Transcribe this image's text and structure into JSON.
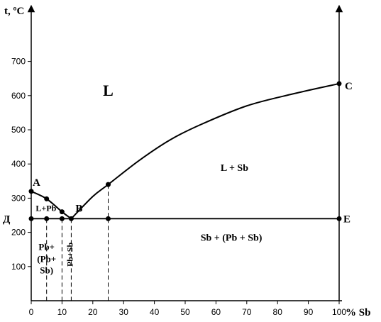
{
  "chart_data": {
    "type": "line",
    "ylabel": "t, ºC",
    "xlabel": "% Sb",
    "xlim": [
      0,
      100
    ],
    "ylim": [
      0,
      760
    ],
    "x_ticks": [
      0,
      10,
      20,
      30,
      40,
      50,
      60,
      70,
      80,
      90,
      100
    ],
    "y_ticks": [
      100,
      200,
      300,
      400,
      500,
      600,
      700
    ],
    "liquidus": {
      "left_branch": [
        [
          0,
          320
        ],
        [
          5,
          298
        ],
        [
          10,
          260
        ],
        [
          13,
          240
        ]
      ],
      "right_branch": [
        [
          13,
          240
        ],
        [
          20,
          305
        ],
        [
          25,
          340
        ],
        [
          35,
          410
        ],
        [
          45,
          470
        ],
        [
          55,
          515
        ],
        [
          70,
          570
        ],
        [
          85,
          605
        ],
        [
          100,
          635
        ]
      ]
    },
    "eutectic_line": {
      "y": 240,
      "x_from": 0,
      "x_to": 100
    },
    "points": [
      {
        "label": "A",
        "x": 0,
        "y": 320
      },
      {
        "label": "",
        "x": 5,
        "y": 298
      },
      {
        "label": "",
        "x": 10,
        "y": 260
      },
      {
        "label": "B",
        "x": 13,
        "y": 240
      },
      {
        "label": "",
        "x": 25,
        "y": 340
      },
      {
        "label": "C",
        "x": 100,
        "y": 635
      },
      {
        "label": "Д",
        "x": 0,
        "y": 240
      },
      {
        "label": "",
        "x": 5,
        "y": 240
      },
      {
        "label": "",
        "x": 10,
        "y": 240
      },
      {
        "label": "",
        "x": 25,
        "y": 240
      },
      {
        "label": "E",
        "x": 100,
        "y": 240
      }
    ],
    "dashed_x": [
      5,
      10,
      13,
      25
    ],
    "regions": [
      {
        "text": "L",
        "x": 25,
        "y": 600,
        "size": 22
      },
      {
        "text": "L + Sb",
        "x": 66,
        "y": 380,
        "size": 14
      },
      {
        "text": "L+Pb",
        "x": 4.8,
        "y": 262,
        "size": 12
      },
      {
        "text": "Sb + (Pb + Sb)",
        "x": 65,
        "y": 175,
        "size": 14
      },
      {
        "text": "Pb+",
        "x": 5,
        "y": 148,
        "size": 13
      },
      {
        "text": "(Pb+",
        "x": 5,
        "y": 113,
        "size": 13
      },
      {
        "text": "Sb)",
        "x": 5,
        "y": 80,
        "size": 13
      }
    ],
    "rotated_region": {
      "text": "Pb+Sb",
      "x": 13.5,
      "y": 135,
      "size": 12
    }
  }
}
